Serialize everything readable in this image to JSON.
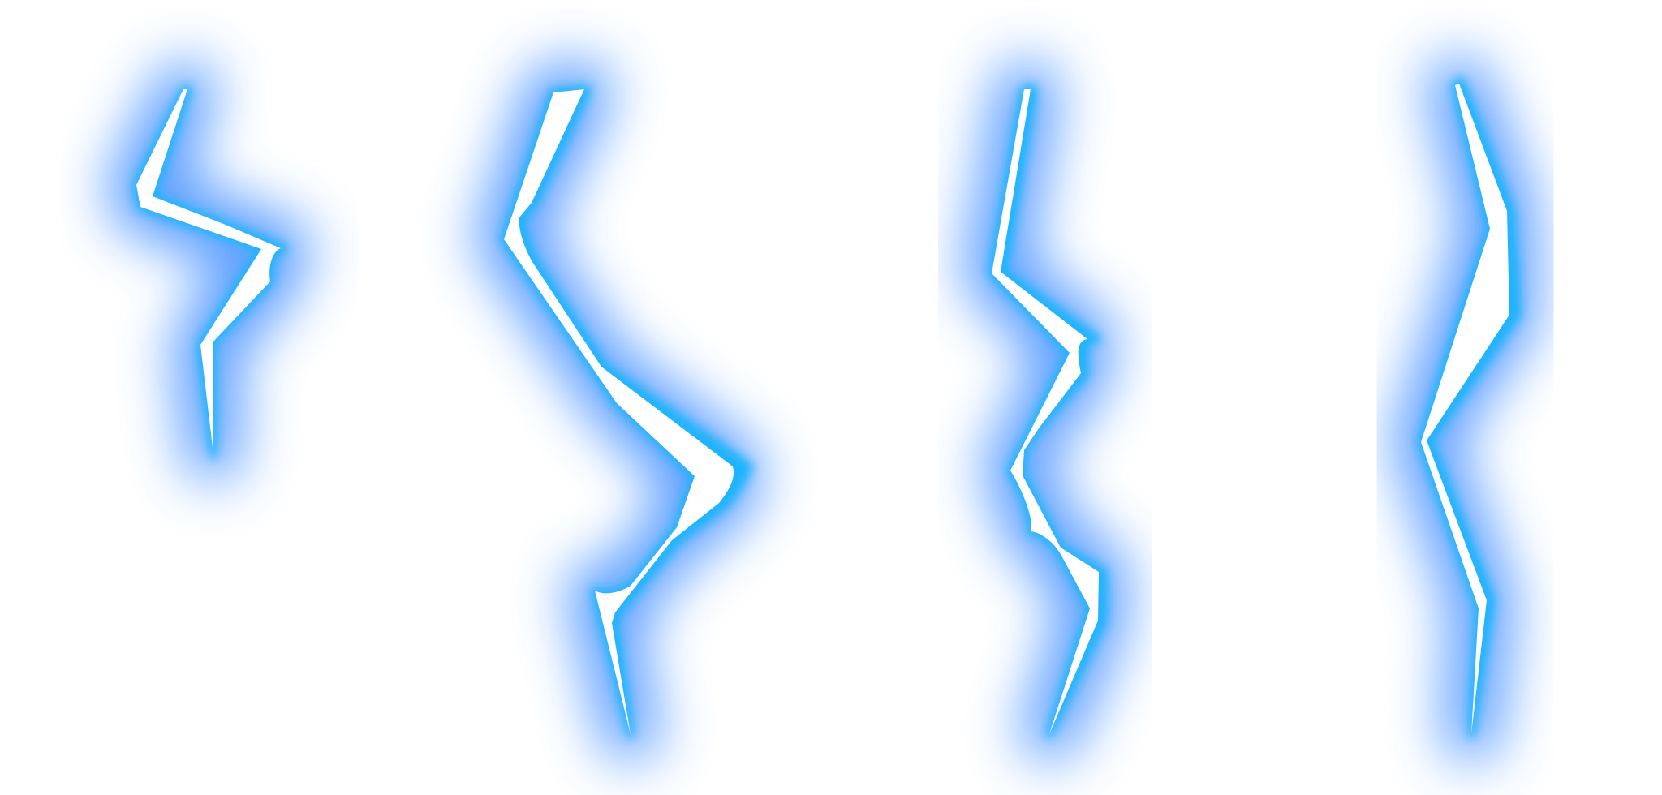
{
  "scene": {
    "background": "#ffffff",
    "glow_color": "#3d8cff",
    "edge_color": "#1ab4ff",
    "core_color": "#ffffff"
  },
  "bolts": [
    {
      "name": "lightning-bolt-1"
    },
    {
      "name": "lightning-bolt-2"
    },
    {
      "name": "lightning-bolt-3"
    },
    {
      "name": "lightning-bolt-4"
    }
  ]
}
